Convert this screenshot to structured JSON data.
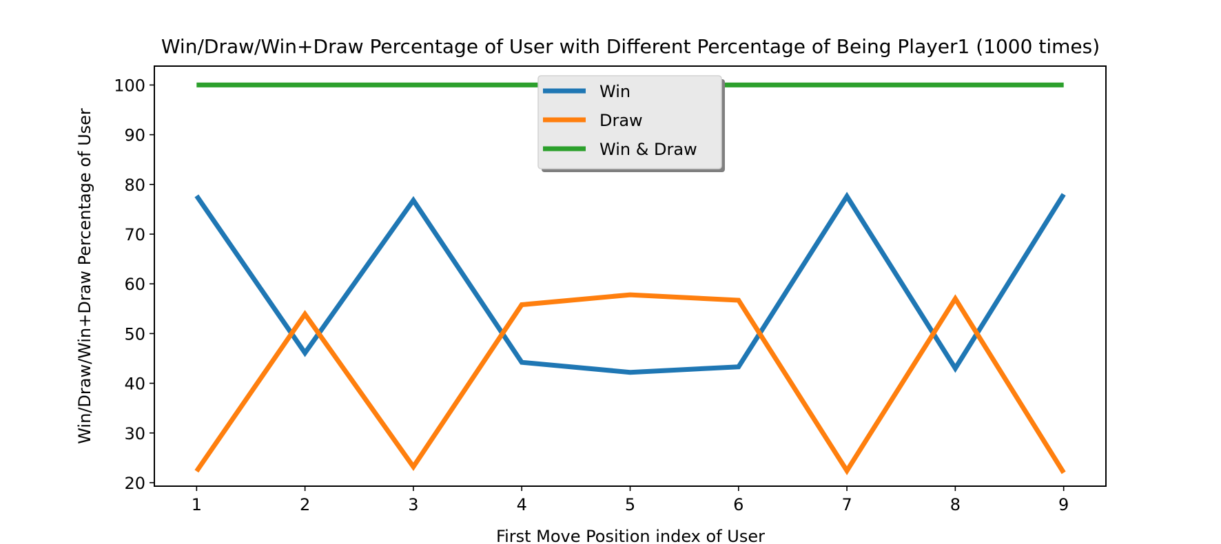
{
  "chart_data": {
    "type": "line",
    "title": "Win/Draw/Win+Draw Percentage of User with Different Percentage of Being Player1 (1000 times)",
    "xlabel": "First Move Position index of User",
    "ylabel": "Win/Draw/Win+Draw Percentage of User",
    "x": [
      1,
      2,
      3,
      4,
      5,
      6,
      7,
      8,
      9
    ],
    "x_tick_labels": [
      "1",
      "2",
      "3",
      "4",
      "5",
      "6",
      "7",
      "8",
      "9"
    ],
    "y_ticks": [
      20,
      30,
      40,
      50,
      60,
      70,
      80,
      90,
      100
    ],
    "y_tick_labels": [
      "20",
      "30",
      "40",
      "50",
      "60",
      "70",
      "80",
      "90",
      "100"
    ],
    "xlim": [
      0.61,
      9.39
    ],
    "ylim": [
      19.3,
      103.8
    ],
    "grid": false,
    "legend_position": "upper center",
    "series": [
      {
        "name": "Win",
        "color": "#1f77b4",
        "values": [
          77.7,
          46.1,
          76.8,
          44.2,
          42.2,
          43.3,
          77.6,
          43.0,
          78.0
        ]
      },
      {
        "name": "Draw",
        "color": "#ff7f0e",
        "values": [
          22.3,
          53.9,
          23.2,
          55.8,
          57.8,
          56.7,
          22.4,
          57.0,
          22.0
        ]
      },
      {
        "name": "Win & Draw",
        "color": "#2ca02c",
        "values": [
          100,
          100,
          100,
          100,
          100,
          100,
          100,
          100,
          100
        ]
      }
    ]
  }
}
